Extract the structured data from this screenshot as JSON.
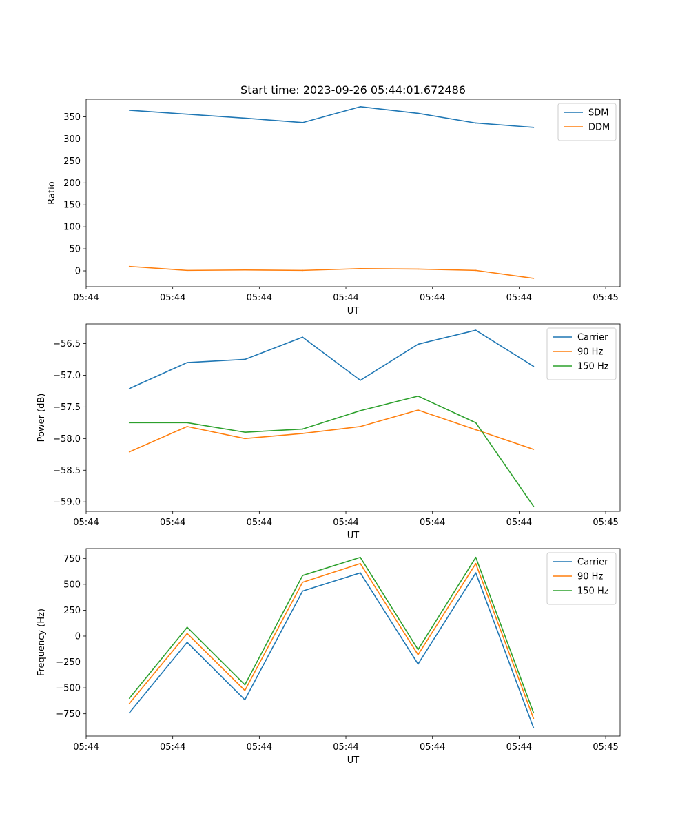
{
  "figure_title": "Start time: 2023-09-26 05:44:01.672486",
  "chart_data": [
    {
      "type": "line",
      "title": "Start time: 2023-09-26 05:44:01.672486",
      "xlabel": "UT",
      "ylabel": "Ratio",
      "x": [
        0,
        1,
        2,
        3,
        4,
        5,
        6,
        7
      ],
      "xlim": [
        -0.75,
        8.5
      ],
      "x_ticks": [
        -0.75,
        0.75,
        2.25,
        3.75,
        5.25,
        6.75,
        8.25
      ],
      "x_tick_labels": [
        "05:44",
        "05:44",
        "05:44",
        "05:44",
        "05:44",
        "05:44",
        "05:45"
      ],
      "ylim": [
        -36,
        390
      ],
      "y_ticks": [
        0,
        50,
        100,
        150,
        200,
        250,
        300,
        350
      ],
      "y_tick_labels": [
        "0",
        "50",
        "100",
        "150",
        "200",
        "250",
        "300",
        "350"
      ],
      "legend_position": "top-right",
      "series": [
        {
          "name": "SDM",
          "color": "#1f77b4",
          "values": [
            365,
            356,
            347,
            337,
            373,
            358,
            336,
            326
          ]
        },
        {
          "name": "DDM",
          "color": "#ff7f0e",
          "values": [
            10,
            1,
            2,
            1,
            5,
            4,
            1,
            -17
          ]
        }
      ]
    },
    {
      "type": "line",
      "title": "",
      "xlabel": "UT",
      "ylabel": "Power (dB)",
      "x": [
        0,
        1,
        2,
        3,
        4,
        5,
        6,
        7
      ],
      "xlim": [
        -0.75,
        8.5
      ],
      "x_ticks": [
        -0.75,
        0.75,
        2.25,
        3.75,
        5.25,
        6.75,
        8.25
      ],
      "x_tick_labels": [
        "05:44",
        "05:44",
        "05:44",
        "05:44",
        "05:44",
        "05:44",
        "05:45"
      ],
      "ylim": [
        -59.15,
        -56.19
      ],
      "y_ticks": [
        -59.0,
        -58.5,
        -58.0,
        -57.5,
        -57.0,
        -56.5
      ],
      "y_tick_labels": [
        "−59.0",
        "−58.5",
        "−58.0",
        "−57.5",
        "−57.0",
        "−56.5"
      ],
      "legend_position": "top-right",
      "series": [
        {
          "name": "Carrier",
          "color": "#1f77b4",
          "values": [
            -57.21,
            -56.8,
            -56.75,
            -56.4,
            -57.08,
            -56.51,
            -56.29,
            -56.86
          ]
        },
        {
          "name": "90 Hz",
          "color": "#ff7f0e",
          "values": [
            -58.21,
            -57.81,
            -58.0,
            -57.92,
            -57.81,
            -57.55,
            -57.86,
            -58.17
          ]
        },
        {
          "name": "150 Hz",
          "color": "#2ca02c",
          "values": [
            -57.75,
            -57.75,
            -57.9,
            -57.85,
            -57.56,
            -57.33,
            -57.75,
            -59.07
          ]
        }
      ]
    },
    {
      "type": "line",
      "title": "",
      "xlabel": "UT",
      "ylabel": "Frequency (Hz)",
      "x": [
        0,
        1,
        2,
        3,
        4,
        5,
        6,
        7
      ],
      "xlim": [
        -0.75,
        8.5
      ],
      "x_ticks": [
        -0.75,
        0.75,
        2.25,
        3.75,
        5.25,
        6.75,
        8.25
      ],
      "x_tick_labels": [
        "05:44",
        "05:44",
        "05:44",
        "05:44",
        "05:44",
        "05:44",
        "05:45"
      ],
      "ylim": [
        -965,
        845
      ],
      "y_ticks": [
        -750,
        -500,
        -250,
        0,
        250,
        500,
        750
      ],
      "y_tick_labels": [
        "−750",
        "−500",
        "−250",
        "0",
        "250",
        "500",
        "750"
      ],
      "legend_position": "top-right",
      "series": [
        {
          "name": "Carrier",
          "color": "#1f77b4",
          "values": [
            -740,
            -60,
            -615,
            435,
            610,
            -270,
            610,
            -885
          ]
        },
        {
          "name": "90 Hz",
          "color": "#ff7f0e",
          "values": [
            -650,
            25,
            -525,
            520,
            700,
            -180,
            700,
            -795
          ]
        },
        {
          "name": "150 Hz",
          "color": "#2ca02c",
          "values": [
            -600,
            85,
            -470,
            585,
            760,
            -130,
            760,
            -740
          ]
        }
      ]
    }
  ]
}
